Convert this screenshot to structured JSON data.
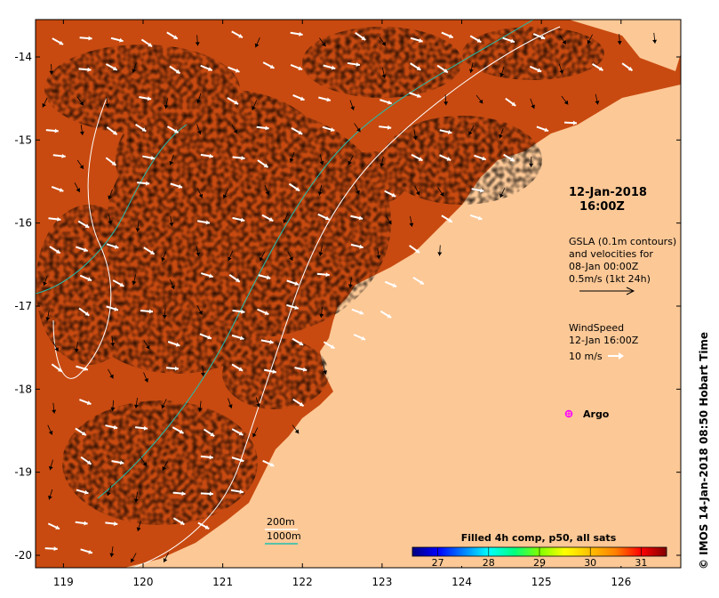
{
  "map": {
    "lon_range": [
      118.65,
      126.75
    ],
    "lat_range": [
      -20.15,
      -13.55
    ],
    "x_ticks": [
      119,
      120,
      121,
      122,
      123,
      124,
      125,
      126
    ],
    "y_ticks": [
      -14,
      -15,
      -16,
      -17,
      -18,
      -19,
      -20
    ],
    "land_color": "#fcc896",
    "frame_color": "#000000"
  },
  "annotations": {
    "date": "12-Jan-2018",
    "time": "16:00Z",
    "gsla_line1": "GSLA (0.1m contours)",
    "gsla_line2": "and velocities for",
    "gsla_line3": "08-Jan 00:00Z",
    "gsla_line4": "0.5m/s (1kt 24h)",
    "wind_line1": "WindSpeed",
    "wind_line2": "12-Jan 16:00Z",
    "wind_line3": "10 m/s",
    "argo_label": "Argo",
    "depth_200": "200m",
    "depth_1000": "1000m",
    "credit": "© IMOS 14-Jan-2018 08:50 Hobart Time"
  },
  "colorbar": {
    "title": "Filled 4h comp, p50, all sats",
    "min": 26.5,
    "max": 31.5,
    "ticks": [
      27,
      28,
      29,
      30,
      31
    ],
    "colors": [
      "#000080",
      "#0000ff",
      "#0080ff",
      "#00ffff",
      "#00ff80",
      "#80ff00",
      "#ffff00",
      "#ffc000",
      "#ff8000",
      "#ff0000",
      "#800000"
    ]
  },
  "colors": {
    "argo": "#ff00ff",
    "contour_200": "#ffffff",
    "contour_1000": "#20c0b0"
  }
}
